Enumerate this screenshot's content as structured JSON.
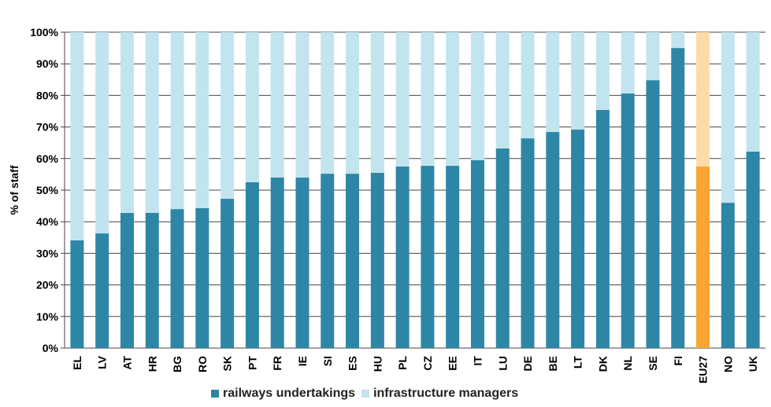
{
  "chart_data": {
    "type": "bar",
    "stacked": true,
    "title": "",
    "xlabel": "",
    "ylabel": "% of staff",
    "ylim": [
      0,
      100
    ],
    "yticks": [
      "0%",
      "10%",
      "20%",
      "30%",
      "40%",
      "50%",
      "60%",
      "70%",
      "80%",
      "90%",
      "100%"
    ],
    "grid": true,
    "legend_position": "bottom",
    "categories": [
      "EL",
      "LV",
      "AT",
      "HR",
      "BG",
      "RO",
      "SK",
      "PT",
      "FR",
      "IE",
      "SI",
      "ES",
      "HU",
      "PL",
      "CZ",
      "EE",
      "IT",
      "LU",
      "DE",
      "BE",
      "LT",
      "DK",
      "NL",
      "SE",
      "FI",
      "EU27",
      "NO",
      "UK"
    ],
    "highlight": "EU27",
    "series": [
      {
        "name": "railways undertakings",
        "color": "#2E86A6",
        "highlight_color": "#F9A533",
        "values": [
          34.1,
          36.3,
          42.8,
          42.8,
          44.0,
          44.3,
          47.3,
          52.5,
          54.0,
          54.0,
          55.2,
          55.2,
          55.5,
          57.5,
          57.7,
          57.7,
          59.5,
          63.2,
          66.4,
          68.4,
          69.2,
          75.4,
          80.6,
          84.8,
          95.0,
          57.5,
          46.0,
          62.2
        ]
      },
      {
        "name": "infrastructure managers",
        "color": "#C2E4EE",
        "highlight_color": "#FDDBA9",
        "values": [
          65.9,
          63.7,
          57.2,
          57.2,
          56.0,
          55.7,
          52.7,
          47.5,
          46.0,
          46.0,
          44.8,
          44.8,
          44.5,
          42.5,
          42.3,
          42.3,
          40.5,
          36.8,
          33.6,
          31.6,
          30.8,
          24.6,
          19.4,
          15.2,
          5.0,
          42.5,
          54.0,
          37.8
        ]
      }
    ]
  }
}
